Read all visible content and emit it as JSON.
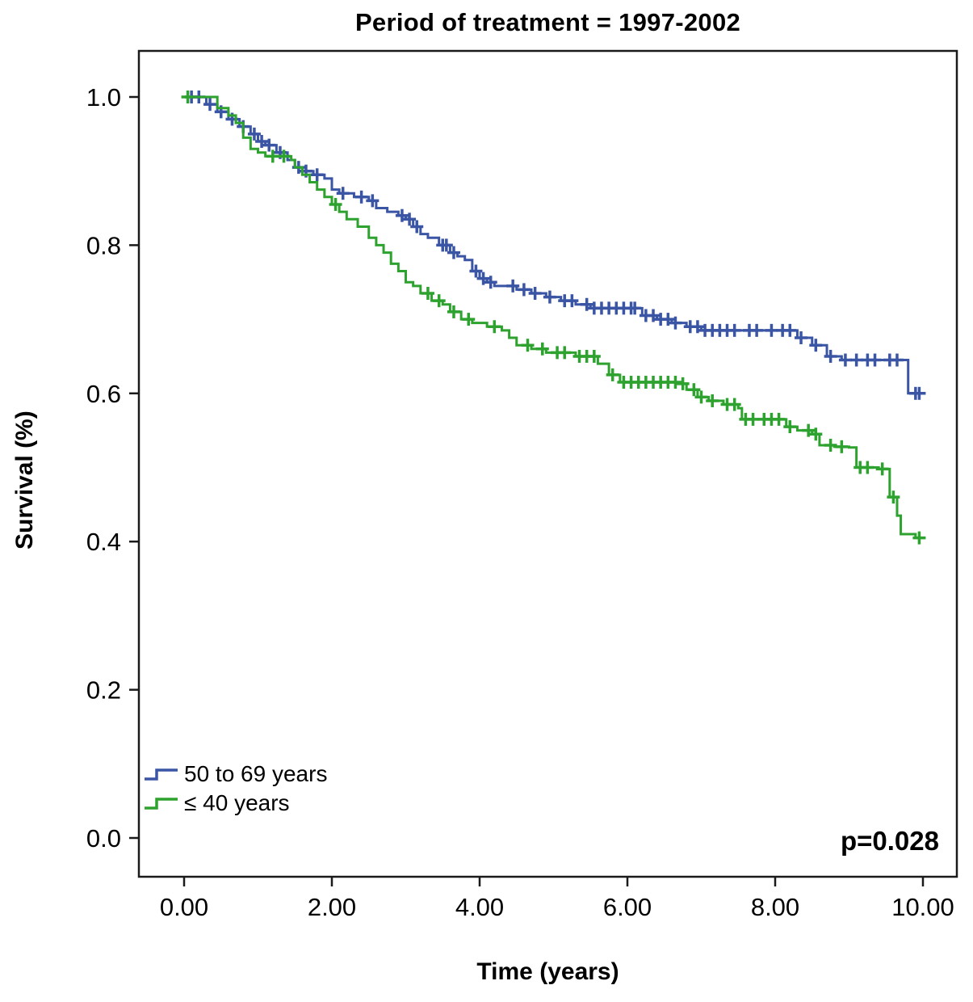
{
  "chart_data": {
    "type": "line",
    "subtype": "kaplan-meier-step",
    "title": "Period of treatment = 1997-2002",
    "xlabel": "Time (years)",
    "ylabel": "Survival (%)",
    "xlim": [
      0,
      10
    ],
    "ylim": [
      0.0,
      1.0
    ],
    "grid": false,
    "legend_position": "lower-left",
    "annotation": "p=0.028",
    "xticks": {
      "values": [
        0,
        2,
        4,
        6,
        8,
        10
      ],
      "labels": [
        "0.00",
        "2.00",
        "4.00",
        "6.00",
        "8.00",
        "10.00"
      ]
    },
    "yticks": {
      "values": [
        0.0,
        0.2,
        0.4,
        0.6,
        0.8,
        1.0
      ],
      "labels": [
        "0.0",
        "0.2",
        "0.4",
        "0.6",
        "0.8",
        "1.0"
      ]
    },
    "series": [
      {
        "name": "50 to 69 years",
        "color": "#3b55a5",
        "points": [
          [
            0,
            1.0
          ],
          [
            0.3,
            0.99
          ],
          [
            0.45,
            0.98
          ],
          [
            0.6,
            0.97
          ],
          [
            0.75,
            0.96
          ],
          [
            0.9,
            0.95
          ],
          [
            1.0,
            0.94
          ],
          [
            1.1,
            0.935
          ],
          [
            1.25,
            0.925
          ],
          [
            1.4,
            0.915
          ],
          [
            1.5,
            0.905
          ],
          [
            1.6,
            0.9
          ],
          [
            1.75,
            0.895
          ],
          [
            1.9,
            0.89
          ],
          [
            2.0,
            0.875
          ],
          [
            2.1,
            0.87
          ],
          [
            2.3,
            0.865
          ],
          [
            2.5,
            0.86
          ],
          [
            2.6,
            0.85
          ],
          [
            2.75,
            0.845
          ],
          [
            2.9,
            0.84
          ],
          [
            3.0,
            0.835
          ],
          [
            3.1,
            0.825
          ],
          [
            3.2,
            0.815
          ],
          [
            3.3,
            0.81
          ],
          [
            3.45,
            0.8
          ],
          [
            3.6,
            0.79
          ],
          [
            3.7,
            0.785
          ],
          [
            3.8,
            0.78
          ],
          [
            3.9,
            0.765
          ],
          [
            4.0,
            0.755
          ],
          [
            4.1,
            0.75
          ],
          [
            4.2,
            0.745
          ],
          [
            4.5,
            0.74
          ],
          [
            4.7,
            0.735
          ],
          [
            4.9,
            0.73
          ],
          [
            5.1,
            0.725
          ],
          [
            5.3,
            0.72
          ],
          [
            5.5,
            0.715
          ],
          [
            6.0,
            0.715
          ],
          [
            6.2,
            0.705
          ],
          [
            6.4,
            0.7
          ],
          [
            6.6,
            0.695
          ],
          [
            6.8,
            0.69
          ],
          [
            7.0,
            0.685
          ],
          [
            8.0,
            0.685
          ],
          [
            8.3,
            0.675
          ],
          [
            8.5,
            0.665
          ],
          [
            8.7,
            0.65
          ],
          [
            8.9,
            0.645
          ],
          [
            9.5,
            0.645
          ],
          [
            9.75,
            0.645
          ],
          [
            9.8,
            0.6
          ],
          [
            10.0,
            0.6
          ]
        ],
        "censor_x": [
          0.1,
          0.2,
          0.35,
          0.5,
          0.65,
          0.8,
          0.95,
          1.05,
          1.15,
          1.3,
          1.55,
          1.65,
          1.8,
          2.15,
          2.4,
          2.55,
          2.95,
          3.05,
          3.15,
          3.5,
          3.55,
          3.65,
          3.95,
          4.05,
          4.15,
          4.45,
          4.6,
          4.75,
          4.95,
          5.15,
          5.25,
          5.45,
          5.55,
          5.65,
          5.75,
          5.85,
          5.95,
          6.05,
          6.1,
          6.25,
          6.35,
          6.45,
          6.55,
          6.65,
          6.85,
          6.95,
          7.05,
          7.15,
          7.25,
          7.35,
          7.45,
          7.65,
          7.75,
          7.95,
          8.1,
          8.2,
          8.35,
          8.55,
          8.75,
          8.95,
          9.1,
          9.25,
          9.35,
          9.55,
          9.65,
          9.9,
          9.95
        ]
      },
      {
        "name": "≤ 40 years",
        "color": "#2ea22e",
        "points": [
          [
            0,
            1.0
          ],
          [
            0.4,
            1.0
          ],
          [
            0.45,
            0.985
          ],
          [
            0.6,
            0.975
          ],
          [
            0.7,
            0.965
          ],
          [
            0.8,
            0.945
          ],
          [
            0.9,
            0.93
          ],
          [
            1.0,
            0.925
          ],
          [
            1.1,
            0.92
          ],
          [
            1.3,
            0.92
          ],
          [
            1.45,
            0.915
          ],
          [
            1.5,
            0.905
          ],
          [
            1.6,
            0.895
          ],
          [
            1.7,
            0.885
          ],
          [
            1.8,
            0.875
          ],
          [
            1.9,
            0.865
          ],
          [
            2.0,
            0.855
          ],
          [
            2.1,
            0.845
          ],
          [
            2.2,
            0.835
          ],
          [
            2.35,
            0.825
          ],
          [
            2.5,
            0.81
          ],
          [
            2.6,
            0.8
          ],
          [
            2.7,
            0.79
          ],
          [
            2.8,
            0.775
          ],
          [
            2.9,
            0.765
          ],
          [
            3.0,
            0.75
          ],
          [
            3.1,
            0.745
          ],
          [
            3.2,
            0.735
          ],
          [
            3.35,
            0.725
          ],
          [
            3.5,
            0.72
          ],
          [
            3.6,
            0.71
          ],
          [
            3.75,
            0.7
          ],
          [
            3.9,
            0.695
          ],
          [
            4.1,
            0.69
          ],
          [
            4.3,
            0.685
          ],
          [
            4.4,
            0.675
          ],
          [
            4.5,
            0.665
          ],
          [
            4.7,
            0.66
          ],
          [
            4.9,
            0.655
          ],
          [
            5.3,
            0.65
          ],
          [
            5.6,
            0.64
          ],
          [
            5.75,
            0.625
          ],
          [
            5.9,
            0.615
          ],
          [
            6.7,
            0.613
          ],
          [
            6.8,
            0.605
          ],
          [
            6.95,
            0.595
          ],
          [
            7.1,
            0.59
          ],
          [
            7.3,
            0.585
          ],
          [
            7.5,
            0.58
          ],
          [
            7.55,
            0.565
          ],
          [
            8.0,
            0.565
          ],
          [
            8.15,
            0.555
          ],
          [
            8.3,
            0.55
          ],
          [
            8.5,
            0.545
          ],
          [
            8.6,
            0.53
          ],
          [
            8.8,
            0.528
          ],
          [
            9.0,
            0.527
          ],
          [
            9.1,
            0.5
          ],
          [
            9.4,
            0.498
          ],
          [
            9.55,
            0.46
          ],
          [
            9.65,
            0.435
          ],
          [
            9.7,
            0.41
          ],
          [
            9.9,
            0.405
          ],
          [
            10.0,
            0.405
          ]
        ],
        "censor_x": [
          0.05,
          1.2,
          1.35,
          2.05,
          3.3,
          3.45,
          3.65,
          3.85,
          4.2,
          4.65,
          4.85,
          5.05,
          5.15,
          5.35,
          5.45,
          5.55,
          5.8,
          5.95,
          6.05,
          6.15,
          6.25,
          6.35,
          6.45,
          6.55,
          6.65,
          6.75,
          6.9,
          7.0,
          7.15,
          7.35,
          7.45,
          7.6,
          7.7,
          7.85,
          7.95,
          8.05,
          8.2,
          8.45,
          8.55,
          8.75,
          8.9,
          9.15,
          9.25,
          9.45,
          9.6,
          9.95
        ]
      }
    ]
  }
}
